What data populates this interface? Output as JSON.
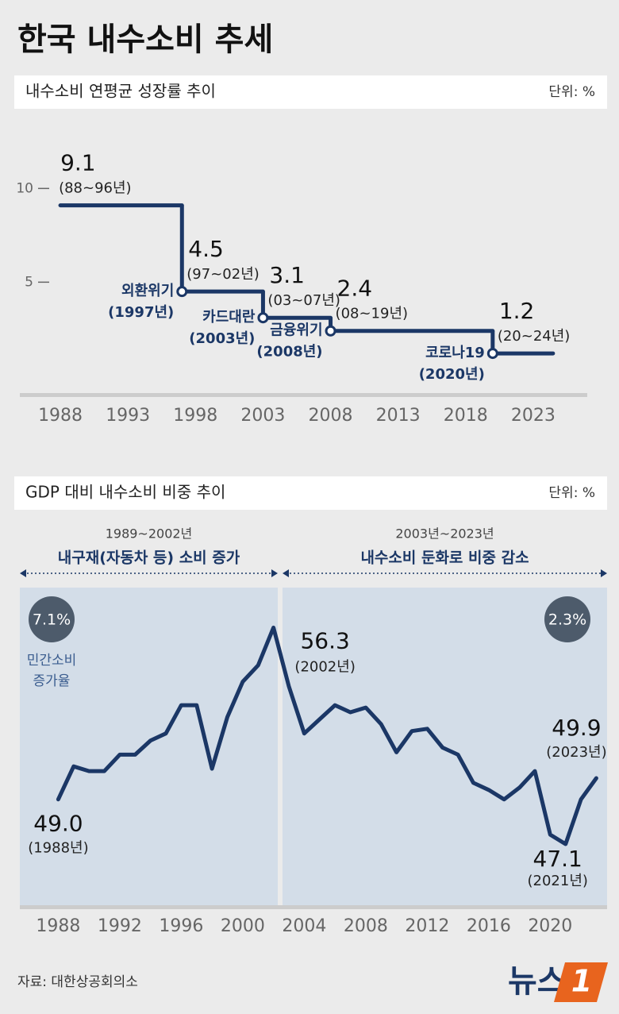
{
  "title": "한국 내수소비 추세",
  "source": "자료: 대한상공회의소",
  "logo": {
    "text": "뉴스",
    "mark": "1"
  },
  "chart_data": [
    {
      "type": "step",
      "title": "내수소비 연평균 성장률 추이",
      "unit": "단위: %",
      "x": [
        1988,
        1997,
        2003,
        2008,
        2020
      ],
      "values": [
        9.1,
        4.5,
        3.1,
        2.4,
        1.2
      ],
      "period_labels": [
        "(88~96년)",
        "(97~02년)",
        "(03~07년)",
        "(08~19년)",
        "(20~24년)"
      ],
      "events": [
        null,
        "외환위기",
        "카드대란",
        "금융위기",
        "코로나19"
      ],
      "event_years": [
        null,
        "(1997년)",
        "(2003년)",
        "(2008년)",
        "(2020년)"
      ],
      "color": "#1b3766",
      "xlim": [
        1985,
        2027
      ],
      "xticks": [
        1988,
        1993,
        1998,
        2003,
        2008,
        2013,
        2018,
        2023
      ],
      "ylim": [
        -1,
        13.7
      ],
      "yticks": [
        5,
        10
      ]
    },
    {
      "type": "line",
      "title": "GDP 대비 내수소비 비중 추이",
      "unit": "단위: %",
      "x": [
        1988,
        1989,
        1990,
        1991,
        1992,
        1993,
        1994,
        1995,
        1996,
        1997,
        1998,
        1999,
        2000,
        2001,
        2002,
        2003,
        2004,
        2005,
        2006,
        2007,
        2008,
        2009,
        2010,
        2011,
        2012,
        2013,
        2014,
        2015,
        2016,
        2017,
        2018,
        2019,
        2020,
        2021,
        2022,
        2023
      ],
      "values": [
        49.0,
        50.4,
        50.2,
        50.2,
        50.9,
        50.9,
        51.5,
        51.8,
        53.0,
        53.0,
        50.3,
        52.5,
        54.0,
        54.7,
        56.3,
        53.8,
        51.8,
        52.4,
        53.0,
        52.7,
        52.9,
        52.2,
        51.0,
        51.9,
        52.0,
        51.2,
        50.9,
        49.7,
        49.4,
        49.0,
        49.5,
        50.2,
        47.5,
        47.1,
        49.0,
        49.9
      ],
      "value_labels": [
        "49.0",
        null,
        null,
        null,
        null,
        null,
        null,
        null,
        null,
        null,
        null,
        null,
        null,
        null,
        "56.3",
        null,
        null,
        null,
        null,
        null,
        null,
        null,
        null,
        null,
        null,
        null,
        null,
        null,
        null,
        null,
        null,
        null,
        null,
        "47.1",
        null,
        "49.9"
      ],
      "value_notes": [
        "(1988년)",
        null,
        null,
        null,
        null,
        null,
        null,
        null,
        null,
        null,
        null,
        null,
        null,
        null,
        "(2002년)",
        null,
        null,
        null,
        null,
        null,
        null,
        null,
        null,
        null,
        null,
        null,
        null,
        null,
        null,
        null,
        null,
        null,
        null,
        "(2021년)",
        null,
        "(2023년)"
      ],
      "periods": [
        {
          "range": "1989~2002년",
          "caption": "내구재(자동차 등) 소비 증가",
          "growth": "7.1%"
        },
        {
          "range": "2003년~2023년",
          "caption": "내수소비 둔화로 비중 감소",
          "growth": "2.3%"
        }
      ],
      "growth_label": [
        "민간소비",
        "증가율"
      ],
      "color": "#1b3766",
      "xlim": [
        1985.5,
        2023.7
      ],
      "xticks": [
        1988,
        1992,
        1996,
        2000,
        2004,
        2008,
        2012,
        2016,
        2020
      ],
      "ylim": [
        44.5,
        58
      ]
    }
  ]
}
